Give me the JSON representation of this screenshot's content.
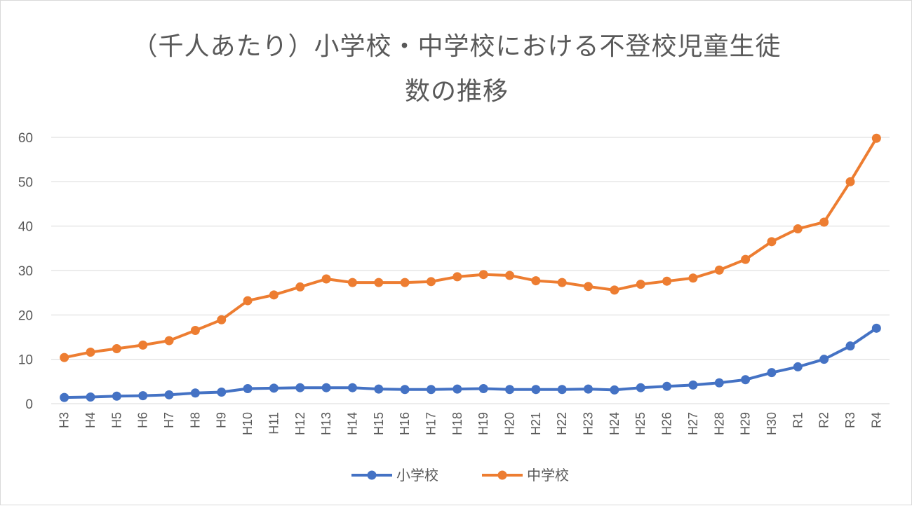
{
  "chart_data": {
    "type": "line",
    "title_line1": "（千人あたり）小学校・中学校における不登校児童生徒",
    "title_line2": "数の推移",
    "xlabel": "",
    "ylabel": "",
    "ylim": [
      0,
      60
    ],
    "yticks": [
      "0",
      "10",
      "20",
      "30",
      "40",
      "50",
      "60"
    ],
    "grid": true,
    "legend_position": "bottom",
    "categories": [
      "H3",
      "H4",
      "H5",
      "H6",
      "H7",
      "H8",
      "H9",
      "H10",
      "H11",
      "H12",
      "H13",
      "H14",
      "H15",
      "H16",
      "H17",
      "H18",
      "H19",
      "H20",
      "H21",
      "H22",
      "H23",
      "H24",
      "H25",
      "H26",
      "H27",
      "H28",
      "H29",
      "H30",
      "R1",
      "R2",
      "R3",
      "R4"
    ],
    "series": [
      {
        "name": "小学校",
        "color": "#4472C4",
        "values": [
          1.4,
          1.5,
          1.7,
          1.8,
          2.0,
          2.4,
          2.6,
          3.4,
          3.5,
          3.6,
          3.6,
          3.6,
          3.3,
          3.2,
          3.2,
          3.3,
          3.4,
          3.2,
          3.2,
          3.2,
          3.3,
          3.1,
          3.6,
          3.9,
          4.2,
          4.7,
          5.4,
          7.0,
          8.3,
          10.0,
          13.0,
          17.0
        ]
      },
      {
        "name": "中学校",
        "color": "#ED7D31",
        "values": [
          10.4,
          11.6,
          12.4,
          13.2,
          14.2,
          16.5,
          18.9,
          23.2,
          24.5,
          26.3,
          28.1,
          27.3,
          27.3,
          27.3,
          27.5,
          28.6,
          29.1,
          28.9,
          27.7,
          27.3,
          26.4,
          25.6,
          26.9,
          27.6,
          28.3,
          30.1,
          32.5,
          36.5,
          39.4,
          40.9,
          50.0,
          59.8
        ]
      }
    ]
  }
}
